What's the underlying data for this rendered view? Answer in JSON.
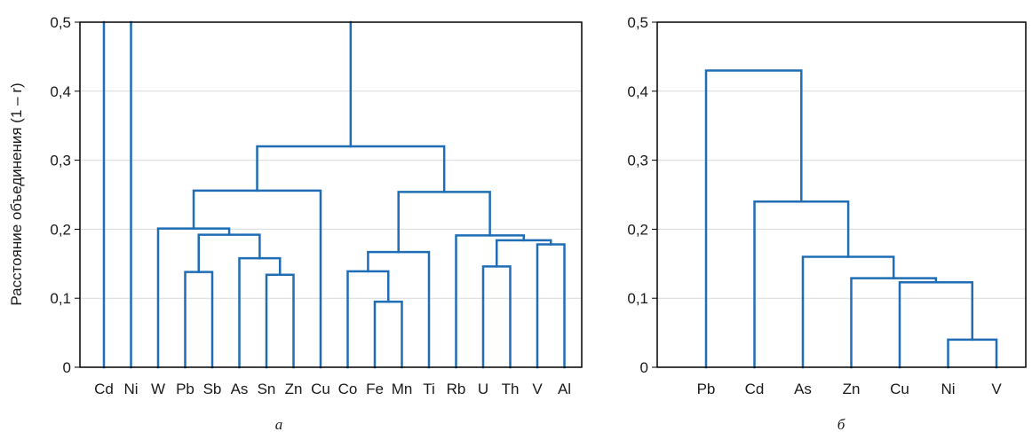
{
  "chart_data": [
    {
      "type": "dendrogram",
      "panel_label": "а",
      "ylabel": "Расстояние объединения (1 – r)",
      "ylim": [
        0,
        0.5
      ],
      "yticks": [
        "0",
        "0,1",
        "0,2",
        "0,3",
        "0,4",
        "0,5"
      ],
      "leaves": [
        "Cd",
        "Ni",
        "W",
        "Pb",
        "Sb",
        "As",
        "Sn",
        "Zn",
        "Cu",
        "Co",
        "Fe",
        "Mn",
        "Ti",
        "Rb",
        "U",
        "Th",
        "V",
        "Al"
      ],
      "merges": [
        {
          "left": "Fe",
          "right": "Mn",
          "height": 0.095
        },
        {
          "left": "Sn",
          "right": "Zn",
          "height": 0.134
        },
        {
          "left": "Pb",
          "right": "Sb",
          "height": 0.138
        },
        {
          "left": "Co",
          "right": "Fe+Mn",
          "height": 0.139
        },
        {
          "left": "U",
          "right": "Th",
          "height": 0.146
        },
        {
          "left": "As",
          "right": "Sn+Zn",
          "height": 0.158
        },
        {
          "left": "Co+Fe+Mn",
          "right": "Ti",
          "height": 0.167
        },
        {
          "left": "V",
          "right": "Al",
          "height": 0.178
        },
        {
          "left": "U+Th",
          "right": "V+Al",
          "height": 0.184
        },
        {
          "left": "Rb",
          "right": "U+Th+V+Al",
          "height": 0.191
        },
        {
          "left": "Pb+Sb",
          "right": "As+Sn+Zn",
          "height": 0.192
        },
        {
          "left": "W",
          "right": "Pb+Sb+As+Sn+Zn",
          "height": 0.201
        },
        {
          "left": "Co+Fe+Mn+Ti",
          "right": "Rb+U+Th+V+Al",
          "height": 0.254
        },
        {
          "left": "W+Pb+Sb+As+Sn+Zn",
          "right": "Cu",
          "height": 0.256
        },
        {
          "left": "W..Cu",
          "right": "Co..Al",
          "height": 0.32
        }
      ],
      "above_axis_max": [
        "Cd",
        "Ni",
        "W..Al"
      ]
    },
    {
      "type": "dendrogram",
      "panel_label": "б",
      "ylabel": "",
      "ylim": [
        0,
        0.5
      ],
      "yticks": [
        "0",
        "0,1",
        "0,2",
        "0,3",
        "0,4",
        "0,5"
      ],
      "leaves": [
        "Pb",
        "Cd",
        "As",
        "Zn",
        "Cu",
        "Ni",
        "V"
      ],
      "merges": [
        {
          "left": "Ni",
          "right": "V",
          "height": 0.04
        },
        {
          "left": "Cu",
          "right": "Ni+V",
          "height": 0.123
        },
        {
          "left": "Zn",
          "right": "Cu+Ni+V",
          "height": 0.129
        },
        {
          "left": "As",
          "right": "Zn+Cu+Ni+V",
          "height": 0.16
        },
        {
          "left": "Cd",
          "right": "As+Zn+Cu+Ni+V",
          "height": 0.24
        },
        {
          "left": "Pb",
          "right": "Cd+As+Zn+Cu+Ni+V",
          "height": 0.43
        }
      ]
    }
  ],
  "colors": {
    "link": "#1f6eb5"
  }
}
